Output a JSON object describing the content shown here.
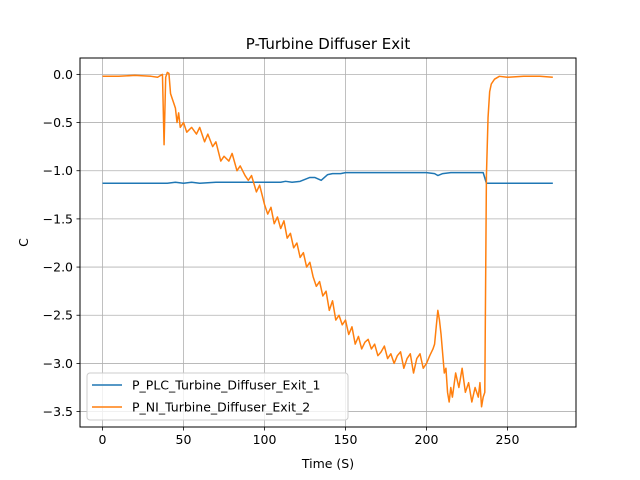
{
  "chart_data": {
    "type": "line",
    "title": "P-Turbine Diffuser Exit",
    "xlabel": "Time (S)",
    "ylabel": "C",
    "xlim": [
      -13.9,
      292.3
    ],
    "ylim": [
      -3.66,
      0.17
    ],
    "xticks": [
      0,
      50,
      100,
      150,
      200,
      250
    ],
    "yticks": [
      0.0,
      -0.5,
      -1.0,
      -1.5,
      -2.0,
      -2.5,
      -3.0,
      -3.5
    ],
    "xtick_labels": [
      "0",
      "50",
      "100",
      "150",
      "200",
      "250"
    ],
    "ytick_labels": [
      "0.0",
      "−0.5",
      "−1.0",
      "−1.5",
      "−2.0",
      "−2.5",
      "−3.0",
      "−3.5"
    ],
    "grid": true,
    "legend_position": "lower-left",
    "series": [
      {
        "name": "P_PLC_Turbine_Diffuser_Exit_1",
        "color": "#1f77b4",
        "x": [
          0,
          40,
          45,
          50,
          55,
          60,
          70,
          80,
          100,
          110,
          113,
          117,
          122,
          128,
          131,
          135,
          139,
          142,
          147,
          150,
          200,
          205,
          207,
          210,
          215,
          220,
          230,
          235,
          237,
          240,
          250,
          260,
          270,
          278
        ],
        "y": [
          -1.13,
          -1.13,
          -1.12,
          -1.13,
          -1.12,
          -1.13,
          -1.12,
          -1.12,
          -1.12,
          -1.12,
          -1.11,
          -1.12,
          -1.11,
          -1.07,
          -1.07,
          -1.1,
          -1.04,
          -1.03,
          -1.03,
          -1.02,
          -1.02,
          -1.03,
          -1.05,
          -1.03,
          -1.02,
          -1.02,
          -1.02,
          -1.02,
          -1.13,
          -1.13,
          -1.13,
          -1.13,
          -1.13,
          -1.13
        ]
      },
      {
        "name": "P_NI_Turbine_Diffuser_Exit_2",
        "color": "#ff7f0e",
        "x": [
          0,
          10,
          20,
          30,
          34,
          37,
          38,
          39,
          40,
          41,
          42,
          43,
          44,
          45,
          46,
          47,
          48,
          50,
          52,
          55,
          58,
          60,
          63,
          65,
          68,
          70,
          73,
          75,
          78,
          80,
          83,
          85,
          88,
          90,
          92,
          95,
          97,
          100,
          102,
          104,
          106,
          108,
          110,
          112,
          114,
          116,
          118,
          120,
          122,
          124,
          126,
          128,
          130,
          132,
          134,
          136,
          138,
          140,
          142,
          144,
          146,
          148,
          150,
          152,
          154,
          156,
          158,
          160,
          162,
          164,
          166,
          168,
          170,
          172,
          174,
          176,
          178,
          180,
          182,
          184,
          186,
          188,
          190,
          192,
          194,
          196,
          198,
          200,
          202,
          204,
          205,
          206,
          207,
          208,
          209,
          210,
          211,
          212,
          213,
          214,
          215,
          216,
          218,
          220,
          222,
          224,
          226,
          228,
          230,
          231,
          232,
          233,
          234,
          235,
          236,
          237,
          238,
          239,
          240,
          242,
          245,
          250,
          260,
          270,
          278
        ],
        "y": [
          -0.02,
          -0.02,
          -0.01,
          -0.02,
          -0.03,
          0.0,
          -0.73,
          -0.03,
          0.02,
          0.01,
          -0.2,
          -0.25,
          -0.3,
          -0.35,
          -0.5,
          -0.4,
          -0.55,
          -0.5,
          -0.6,
          -0.55,
          -0.62,
          -0.55,
          -0.7,
          -0.62,
          -0.75,
          -0.7,
          -0.9,
          -0.85,
          -0.9,
          -0.82,
          -1.0,
          -0.95,
          -1.05,
          -1.1,
          -1.05,
          -1.22,
          -1.15,
          -1.35,
          -1.45,
          -1.38,
          -1.55,
          -1.48,
          -1.6,
          -1.52,
          -1.7,
          -1.65,
          -1.8,
          -1.75,
          -1.9,
          -1.85,
          -2.0,
          -1.95,
          -2.1,
          -2.2,
          -2.15,
          -2.3,
          -2.25,
          -2.45,
          -2.35,
          -2.55,
          -2.5,
          -2.6,
          -2.55,
          -2.7,
          -2.62,
          -2.8,
          -2.72,
          -2.85,
          -2.78,
          -2.75,
          -2.85,
          -2.8,
          -2.92,
          -2.88,
          -2.82,
          -2.95,
          -2.9,
          -3.0,
          -2.92,
          -2.88,
          -3.05,
          -2.95,
          -2.9,
          -3.1,
          -2.95,
          -2.9,
          -3.05,
          -3.0,
          -2.92,
          -2.85,
          -2.8,
          -2.62,
          -2.45,
          -2.55,
          -2.7,
          -2.9,
          -3.1,
          -3.05,
          -3.3,
          -3.4,
          -3.25,
          -3.35,
          -3.1,
          -3.25,
          -3.05,
          -3.3,
          -3.2,
          -3.4,
          -3.25,
          -3.3,
          -3.35,
          -3.2,
          -3.45,
          -3.35,
          -3.3,
          -1.05,
          -0.45,
          -0.18,
          -0.1,
          -0.05,
          -0.02,
          -0.03,
          -0.02,
          -0.02,
          -0.03
        ]
      }
    ]
  }
}
